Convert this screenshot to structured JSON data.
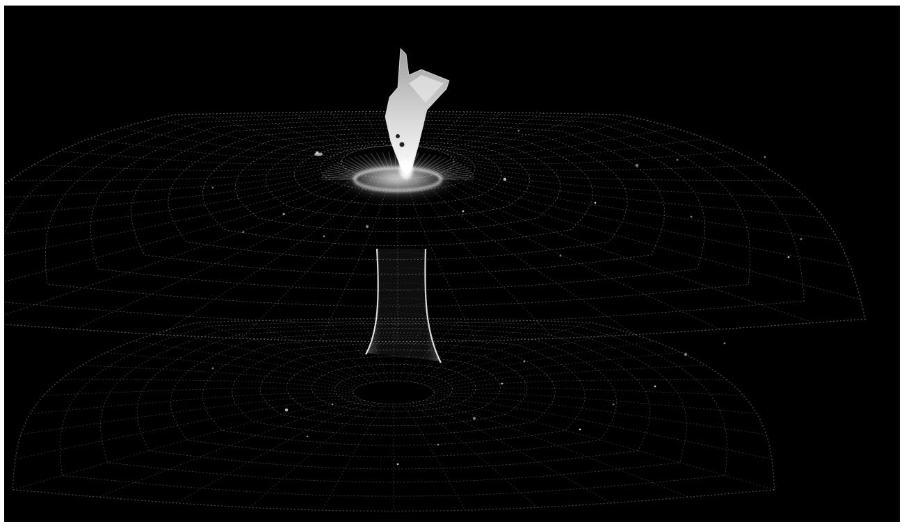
{
  "scene": {
    "subject": "wormhole-wireframe",
    "colors": {
      "background": "#000000",
      "frame_border": "#ffffff",
      "grid": "#9a9a9a",
      "glow": "#ffffff",
      "ship": "#e6e6e6"
    },
    "objects": [
      "upper-grid-sheet",
      "lower-grid-sheet",
      "wormhole-throat",
      "throat-glow",
      "spaceship",
      "stars"
    ]
  }
}
